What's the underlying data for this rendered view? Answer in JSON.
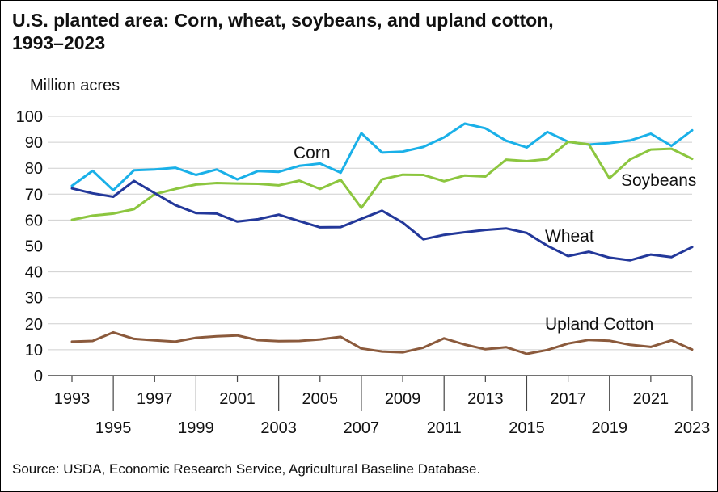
{
  "title_line1": "U.S. planted area: Corn, wheat, soybeans, and upland cotton,",
  "title_line2": "1993–2023",
  "source": "Source: USDA, Economic Research Service, Agricultural Baseline Database.",
  "chart_data": {
    "type": "line",
    "title": "U.S. planted area: Corn, wheat, soybeans, and upland cotton, 1993–2023",
    "ylabel": "Million acres",
    "xlabel": "",
    "ylim": [
      0,
      100
    ],
    "xlim": [
      1993,
      2023
    ],
    "yticks": [
      0,
      10,
      20,
      30,
      40,
      50,
      60,
      70,
      80,
      90,
      100
    ],
    "xticks_upper": [
      "1993",
      "1997",
      "2001",
      "2005",
      "2009",
      "2013",
      "2017",
      "2021"
    ],
    "xticks_lower": [
      "1995",
      "1999",
      "2003",
      "2007",
      "2011",
      "2015",
      "2019",
      "2023"
    ],
    "grid": "horizontal",
    "x": [
      1993,
      1994,
      1995,
      1996,
      1997,
      1998,
      1999,
      2000,
      2001,
      2002,
      2003,
      2004,
      2005,
      2006,
      2007,
      2008,
      2009,
      2010,
      2011,
      2012,
      2013,
      2014,
      2015,
      2016,
      2017,
      2018,
      2019,
      2020,
      2021,
      2022,
      2023
    ],
    "series": [
      {
        "name": "Corn",
        "color": "#1ab0e8",
        "values": [
          73.2,
          79.0,
          71.5,
          79.2,
          79.5,
          80.2,
          77.4,
          79.5,
          75.7,
          78.9,
          78.6,
          80.9,
          81.8,
          78.3,
          93.5,
          86.0,
          86.4,
          88.2,
          91.9,
          97.2,
          95.4,
          90.6,
          88.0,
          94.0,
          90.2,
          89.1,
          89.7,
          90.7,
          93.3,
          88.6,
          94.6
        ]
      },
      {
        "name": "Soybeans",
        "color": "#8cc63f",
        "values": [
          60.1,
          61.7,
          62.5,
          64.2,
          70.0,
          72.0,
          73.7,
          74.3,
          74.1,
          74.0,
          73.4,
          75.2,
          72.0,
          75.5,
          64.7,
          75.7,
          77.5,
          77.4,
          75.0,
          77.2,
          76.8,
          83.3,
          82.7,
          83.5,
          90.2,
          89.2,
          76.1,
          83.4,
          87.2,
          87.5,
          83.6
        ]
      },
      {
        "name": "Wheat",
        "color": "#23389a",
        "values": [
          72.2,
          70.3,
          69.0,
          75.1,
          70.4,
          65.8,
          62.7,
          62.5,
          59.4,
          60.3,
          62.1,
          59.6,
          57.2,
          57.3,
          60.5,
          63.6,
          59.0,
          52.6,
          54.3,
          55.3,
          56.2,
          56.8,
          55.0,
          50.1,
          46.1,
          47.8,
          45.5,
          44.5,
          46.7,
          45.7,
          49.6
        ]
      },
      {
        "name": "Upland Cotton",
        "color": "#8b5a3c",
        "values": [
          13.1,
          13.4,
          16.7,
          14.2,
          13.6,
          13.1,
          14.6,
          15.2,
          15.5,
          13.7,
          13.3,
          13.4,
          14.0,
          15.0,
          10.5,
          9.3,
          9.0,
          10.8,
          14.4,
          12.0,
          10.2,
          11.0,
          8.4,
          9.9,
          12.4,
          13.8,
          13.5,
          11.9,
          11.1,
          13.6,
          10.1
        ]
      }
    ]
  }
}
